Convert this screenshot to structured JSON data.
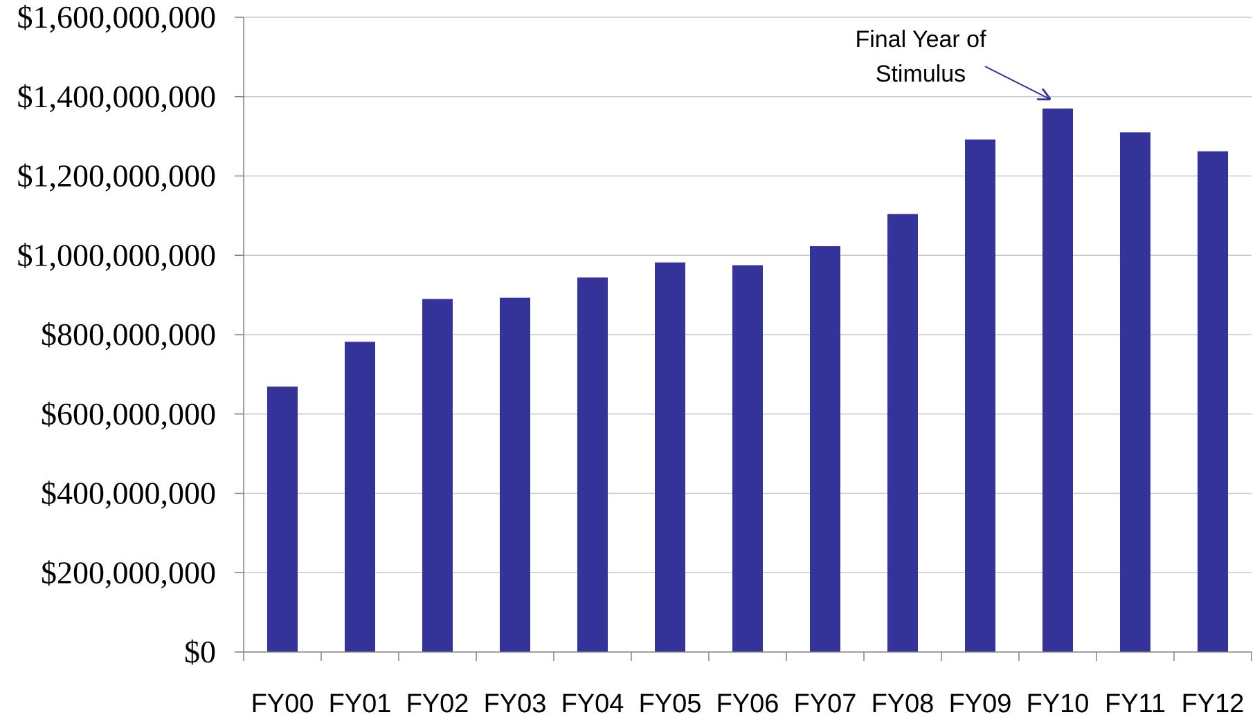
{
  "chart_data": {
    "type": "bar",
    "title": "",
    "xlabel": "",
    "ylabel": "",
    "categories": [
      "FY00",
      "FY01",
      "FY02",
      "FY03",
      "FY04",
      "FY05",
      "FY06",
      "FY07",
      "FY08",
      "FY09",
      "FY10",
      "FY11",
      "FY12"
    ],
    "values": [
      669000000,
      782000000,
      890000000,
      893000000,
      944000000,
      982000000,
      975000000,
      1023000000,
      1104000000,
      1292000000,
      1370000000,
      1310000000,
      1262000000
    ],
    "ylim": [
      0,
      1600000000
    ],
    "yticks": [
      0,
      200000000,
      400000000,
      600000000,
      800000000,
      1000000000,
      1200000000,
      1400000000,
      1600000000
    ],
    "ytick_labels": [
      "$0",
      "$200,000,000",
      "$400,000,000",
      "$600,000,000",
      "$800,000,000",
      "$1,000,000,000",
      "$1,200,000,000",
      "$1,400,000,000",
      "$1,600,000,000"
    ],
    "grid": true,
    "bar_color": "#333399",
    "gridline_color": "#c8c8c8",
    "axis_color": "#808080",
    "annotations": [
      {
        "lines": [
          "Final Year of",
          "Stimulus"
        ],
        "target_category": "FY10",
        "arrow_color": "#333399"
      }
    ]
  }
}
